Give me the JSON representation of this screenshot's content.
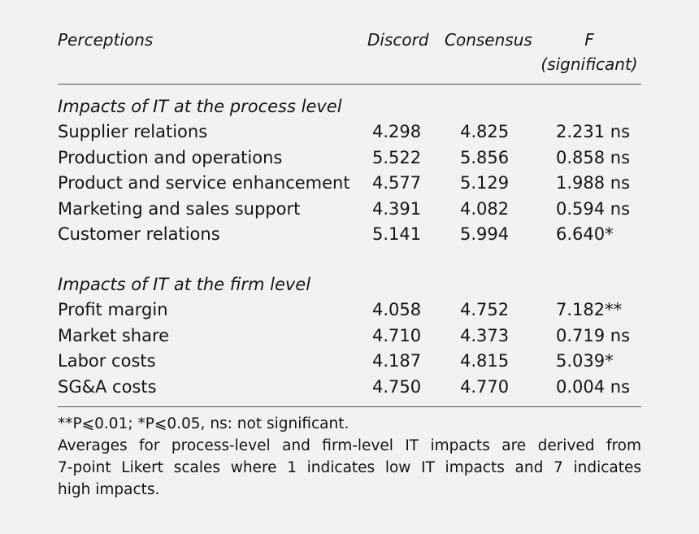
{
  "headers": {
    "perceptions": "Perceptions",
    "discord": "Discord",
    "consensus": "Consensus",
    "f": "F",
    "significant": "(significant)"
  },
  "sections": [
    {
      "title": "Impacts of IT at the process level",
      "rows": [
        {
          "label": "Supplier relations",
          "discord": "4.298",
          "consensus": "4.825",
          "f": "2.231 ns"
        },
        {
          "label": "Production and operations",
          "discord": "5.522",
          "consensus": "5.856",
          "f": "0.858 ns"
        },
        {
          "label": "Product and service enhancement",
          "discord": "4.577",
          "consensus": "5.129",
          "f": "1.988 ns"
        },
        {
          "label": "Marketing and sales support",
          "discord": "4.391",
          "consensus": "4.082",
          "f": "0.594 ns"
        },
        {
          "label": "Customer relations",
          "discord": "5.141",
          "consensus": "5.994",
          "f": "6.640*"
        }
      ]
    },
    {
      "title": "Impacts of IT at the firm level",
      "rows": [
        {
          "label": "Profit margin",
          "discord": "4.058",
          "consensus": "4.752",
          "f": "7.182**"
        },
        {
          "label": "Market share",
          "discord": "4.710",
          "consensus": "4.373",
          "f": "0.719 ns"
        },
        {
          "label": "Labor costs",
          "discord": "4.187",
          "consensus": "4.815",
          "f": "5.039*"
        },
        {
          "label": "SG&A costs",
          "discord": "4.750",
          "consensus": "4.770",
          "f": "0.004 ns"
        }
      ]
    }
  ],
  "footnotes": {
    "significance": "**P⩽0.01; *P⩽0.05, ns: not significant.",
    "line1": "Averages for process-level and firm-level IT impacts are derived from",
    "line2": "7-point Likert scales where 1 indicates low IT impacts and 7 indicates",
    "line3": "high impacts."
  }
}
